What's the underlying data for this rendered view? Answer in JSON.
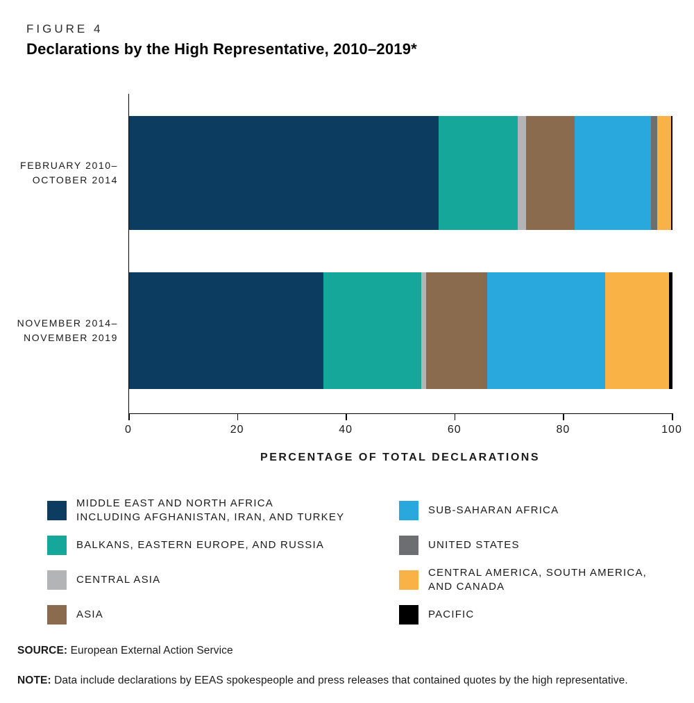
{
  "figure_label": "FIGURE 4",
  "title": "Declarations by the High Representative, 2010–2019*",
  "chart_data": {
    "type": "bar",
    "orientation": "horizontal",
    "stacked": true,
    "x_axis": {
      "label": "PERCENTAGE OF TOTAL DECLARATIONS",
      "range": [
        0,
        100
      ],
      "ticks": [
        0,
        20,
        40,
        60,
        80,
        100
      ]
    },
    "categories": [
      {
        "label_lines": [
          "FEBRUARY 2010–",
          "OCTOBER 2014"
        ]
      },
      {
        "label_lines": [
          "NOVEMBER 2014–",
          "NOVEMBER 2019"
        ]
      }
    ],
    "series": [
      {
        "name": "MIDDLE EAST AND NORTH AFRICA INCLUDING AFGHANISTAN, IRAN, AND TURKEY",
        "color": "#0c3c5f",
        "values": [
          57.0,
          35.8
        ]
      },
      {
        "name": "BALKANS, EASTERN EUROPE, AND RUSSIA",
        "color": "#16a79b",
        "values": [
          14.5,
          18.0
        ]
      },
      {
        "name": "CENTRAL ASIA",
        "color": "#b2b4b6",
        "values": [
          1.5,
          0.9
        ]
      },
      {
        "name": "ASIA",
        "color": "#8a6b4e",
        "values": [
          9.0,
          11.2
        ]
      },
      {
        "name": "SUB-SAHARAN AFRICA",
        "color": "#29a8dd",
        "values": [
          14.0,
          21.7
        ]
      },
      {
        "name": "UNITED STATES",
        "color": "#6d6e71",
        "values": [
          1.2,
          0.0
        ]
      },
      {
        "name": "CENTRAL AMERICA, SOUTH AMERICA, AND CANADA",
        "color": "#f9b246",
        "values": [
          2.5,
          11.8
        ]
      },
      {
        "name": "PACIFIC",
        "color": "#000000",
        "values": [
          0.3,
          0.6
        ]
      }
    ],
    "legend_columns": [
      [
        {
          "lines": [
            "MIDDLE EAST AND NORTH AFRICA",
            "INCLUDING AFGHANISTAN, IRAN, AND TURKEY"
          ],
          "color": "#0c3c5f"
        },
        {
          "lines": [
            "BALKANS, EASTERN EUROPE, AND RUSSIA"
          ],
          "color": "#16a79b"
        },
        {
          "lines": [
            "CENTRAL ASIA"
          ],
          "color": "#b2b4b6"
        },
        {
          "lines": [
            "ASIA"
          ],
          "color": "#8a6b4e"
        }
      ],
      [
        {
          "lines": [
            "SUB-SAHARAN AFRICA"
          ],
          "color": "#29a8dd"
        },
        {
          "lines": [
            "UNITED STATES"
          ],
          "color": "#6d6e71"
        },
        {
          "lines": [
            "CENTRAL AMERICA, SOUTH AMERICA,",
            "AND CANADA"
          ],
          "color": "#f9b246"
        },
        {
          "lines": [
            "PACIFIC"
          ],
          "color": "#000000"
        }
      ]
    ]
  },
  "source": {
    "label": "SOURCE:",
    "text": "European External Action Service"
  },
  "note": {
    "label": "NOTE:",
    "text": "Data include declarations by EEAS spokespeople and press releases that contained quotes by the high representative."
  }
}
